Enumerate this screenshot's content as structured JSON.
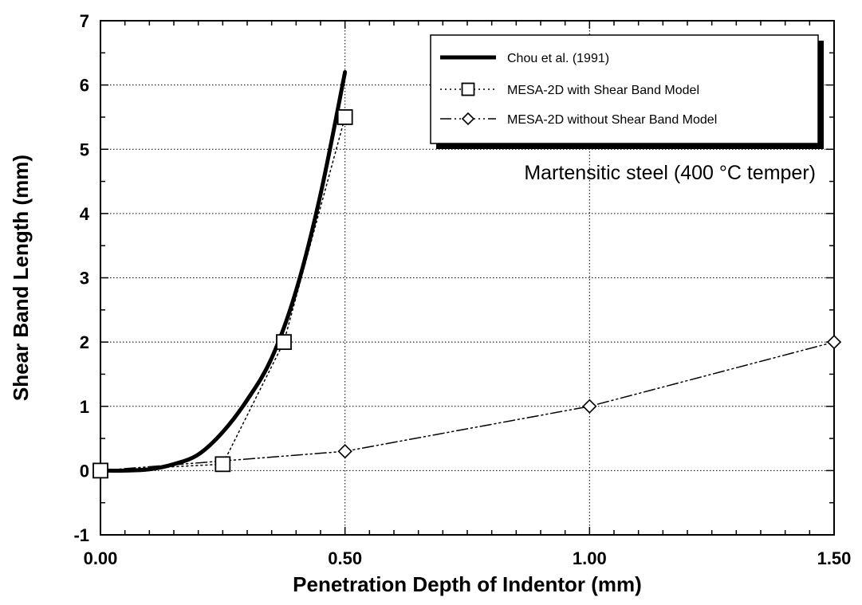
{
  "chart_data": {
    "type": "line",
    "title": "",
    "xlabel": "Penetration Depth of Indentor (mm)",
    "ylabel": "Shear Band Length (mm)",
    "xlim": [
      0,
      1.5
    ],
    "ylim": [
      -1,
      7
    ],
    "xticks": [
      0,
      0.5,
      1.0,
      1.5
    ],
    "xtick_labels": [
      "0.00",
      "0.50",
      "1.00",
      "1.50"
    ],
    "yticks": [
      -1,
      0,
      1,
      2,
      3,
      4,
      5,
      6,
      7
    ],
    "ytick_labels": [
      "-1",
      "0",
      "1",
      "2",
      "3",
      "4",
      "5",
      "6",
      "7"
    ],
    "grid": true,
    "legend_position": "top-right",
    "annotation": "Martensitic steel (400 °C temper)",
    "series": [
      {
        "name": "Chou et al. (1991)",
        "style": "solid-thick",
        "marker": "none",
        "x": [
          0,
          0.05,
          0.1,
          0.15,
          0.2,
          0.25,
          0.3,
          0.35,
          0.4,
          0.45,
          0.5
        ],
        "y": [
          0,
          0,
          0.02,
          0.1,
          0.25,
          0.6,
          1.1,
          1.75,
          2.8,
          4.3,
          6.2
        ]
      },
      {
        "name": "MESA-2D with Shear Band Model",
        "style": "dotted",
        "marker": "square",
        "x": [
          0,
          0.25,
          0.375,
          0.5
        ],
        "y": [
          0,
          0.1,
          2.0,
          5.5
        ]
      },
      {
        "name": "MESA-2D without Shear Band Model",
        "style": "dash-dot-dot",
        "marker": "diamond",
        "x": [
          0,
          0.5,
          1.0,
          1.5
        ],
        "y": [
          0,
          0.3,
          1.0,
          2.0
        ]
      }
    ]
  }
}
